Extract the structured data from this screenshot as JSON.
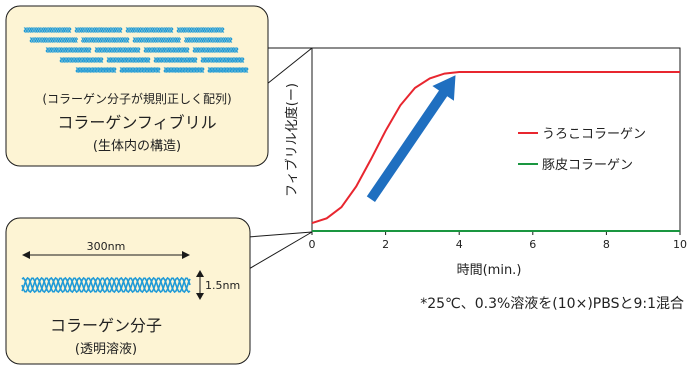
{
  "chart_data": {
    "type": "line",
    "xlabel": "時間(min.)",
    "ylabel": "フィブリル化度(ー)",
    "xlim": [
      0,
      10
    ],
    "ticks": [
      0,
      2,
      4,
      6,
      8,
      10
    ],
    "tick_labels": [
      "0",
      "2",
      "4",
      "6",
      "8",
      "10"
    ],
    "series": [
      {
        "name": "うろこコラーゲン",
        "color": "#e8262f",
        "x": [
          0,
          0.4,
          0.8,
          1.2,
          1.6,
          2.0,
          2.4,
          2.8,
          3.2,
          3.6,
          4.0,
          5.0,
          6.0,
          7.0,
          8.0,
          9.0,
          10.0
        ],
        "y": [
          0.05,
          0.08,
          0.15,
          0.28,
          0.45,
          0.63,
          0.79,
          0.9,
          0.96,
          0.99,
          1.0,
          1.0,
          1.0,
          1.0,
          1.0,
          1.0,
          1.0
        ]
      },
      {
        "name": "豚皮コラーゲン",
        "color": "#1a9640",
        "x": [
          0,
          10
        ],
        "y": [
          0.0,
          0.0
        ]
      }
    ],
    "legend_position": "right",
    "annotation_arrow": {
      "from": [
        1.6,
        0.2
      ],
      "to": [
        3.9,
        0.98
      ],
      "color": "#1f6fc0"
    }
  },
  "callouts": {
    "fibril": {
      "line1": "(コラーゲン分子が規則正しく配列)",
      "line2": "コラーゲンフィブリル",
      "line3": "(生体内の構造)"
    },
    "molecule": {
      "length_label": "300nm",
      "width_label": "1.5nm",
      "line1": "コラーゲン分子",
      "line2": "(透明溶液)"
    }
  },
  "footnote": "*25℃、0.3%溶液を(10×)PBSと9:1混合",
  "colors": {
    "callout_fill": "#fdf4d4",
    "callout_stroke": "#1a1a1a",
    "helix": "#1f9ad6"
  }
}
